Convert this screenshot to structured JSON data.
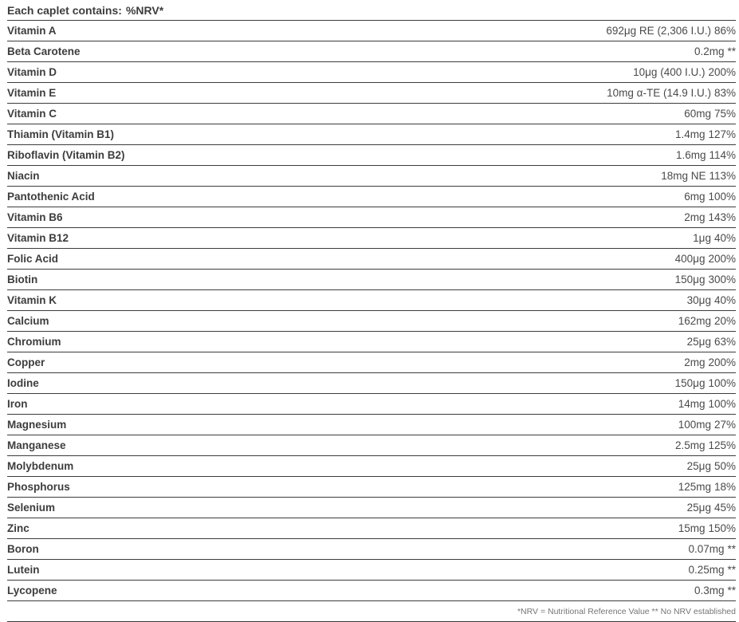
{
  "header": {
    "contains_label": "Each caplet contains:",
    "nrv_label": "%NRV*"
  },
  "rows": [
    {
      "name": "Vitamin A",
      "amount": "692μg RE (2,306 I.U.)",
      "nrv": "86%"
    },
    {
      "name": "Beta Carotene",
      "amount": "0.2mg",
      "nrv": "**"
    },
    {
      "name": "Vitamin D",
      "amount": "10μg (400 I.U.)",
      "nrv": "200%"
    },
    {
      "name": "Vitamin E",
      "amount": "10mg α-TE (14.9 I.U.)",
      "nrv": "83%"
    },
    {
      "name": "Vitamin C",
      "amount": "60mg",
      "nrv": "75%"
    },
    {
      "name": "Thiamin (Vitamin B1)",
      "amount": "1.4mg",
      "nrv": "127%"
    },
    {
      "name": "Riboflavin (Vitamin B2)",
      "amount": "1.6mg",
      "nrv": "114%"
    },
    {
      "name": "Niacin",
      "amount": "18mg NE",
      "nrv": "113%"
    },
    {
      "name": "Pantothenic Acid",
      "amount": "6mg",
      "nrv": "100%"
    },
    {
      "name": "Vitamin B6",
      "amount": "2mg",
      "nrv": "143%"
    },
    {
      "name": "Vitamin B12",
      "amount": "1μg",
      "nrv": "40%"
    },
    {
      "name": "Folic Acid",
      "amount": "400μg",
      "nrv": "200%"
    },
    {
      "name": "Biotin",
      "amount": "150μg",
      "nrv": "300%"
    },
    {
      "name": "Vitamin K",
      "amount": "30μg",
      "nrv": "40%"
    },
    {
      "name": "Calcium",
      "amount": "162mg",
      "nrv": "20%"
    },
    {
      "name": "Chromium",
      "amount": "25μg",
      "nrv": "63%"
    },
    {
      "name": "Copper",
      "amount": "2mg",
      "nrv": "200%"
    },
    {
      "name": "Iodine",
      "amount": "150μg",
      "nrv": "100%"
    },
    {
      "name": "Iron",
      "amount": "14mg",
      "nrv": "100%"
    },
    {
      "name": "Magnesium",
      "amount": "100mg",
      "nrv": "27%"
    },
    {
      "name": "Manganese",
      "amount": "2.5mg",
      "nrv": "125%"
    },
    {
      "name": "Molybdenum",
      "amount": "25μg",
      "nrv": "50%"
    },
    {
      "name": "Phosphorus",
      "amount": "125mg",
      "nrv": "18%"
    },
    {
      "name": "Selenium",
      "amount": "25μg",
      "nrv": "45%"
    },
    {
      "name": "Zinc",
      "amount": "15mg",
      "nrv": "150%"
    },
    {
      "name": "Boron",
      "amount": "0.07mg",
      "nrv": "**"
    },
    {
      "name": "Lutein",
      "amount": "0.25mg",
      "nrv": "**"
    },
    {
      "name": "Lycopene",
      "amount": "0.3mg",
      "nrv": "**"
    }
  ],
  "footnote": "*NRV = Nutritional Reference Value ** No NRV established",
  "colors": {
    "label_text": "#3d3d3d",
    "value_text": "#4a4a4a",
    "rule_line": "#3c3c3c",
    "footnote_text": "#757575",
    "background": "#ffffff"
  }
}
